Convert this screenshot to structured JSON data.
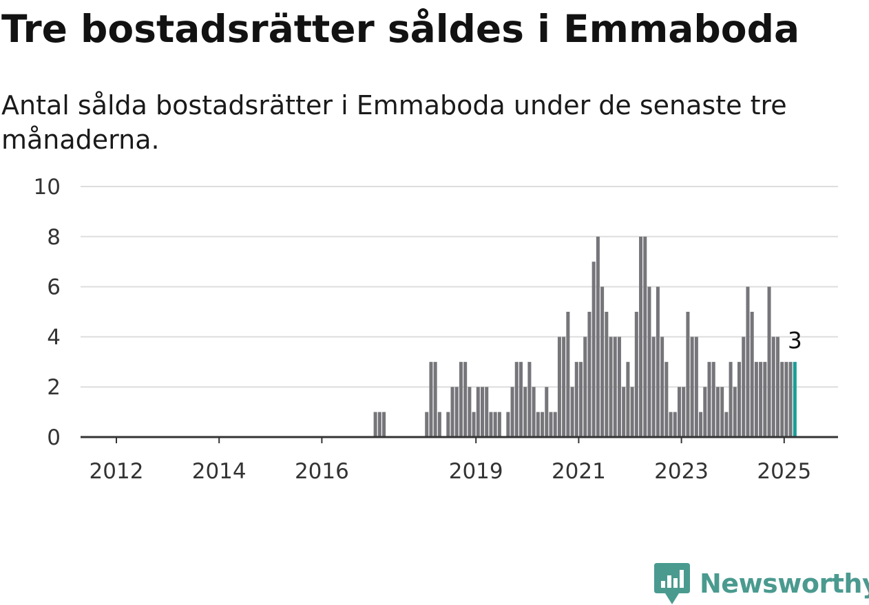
{
  "header": {
    "title": "Tre bostadsrätter såldes i Emmaboda",
    "subtitle": "Antal sålda bostadsrätter i Emmaboda under de senaste tre månaderna."
  },
  "brand": {
    "name": "Newsworthy",
    "color": "#4a9a8f"
  },
  "colors": {
    "bar": "#75757a",
    "highlight": "#1a9e96",
    "grid": "#dddddd",
    "axis": "#333333",
    "tick_text": "#333333"
  },
  "chart_data": {
    "type": "bar",
    "xlabel": "",
    "ylabel": "",
    "ylim": [
      0,
      10
    ],
    "y_ticks": [
      0,
      2,
      4,
      6,
      8,
      10
    ],
    "x_ticks": [
      "2012",
      "2014",
      "2016",
      "2019",
      "2021",
      "2023",
      "2025"
    ],
    "grid": true,
    "highlight_label": "3",
    "categories": [
      "2017-01",
      "2017-02",
      "2017-03",
      "2018-01",
      "2018-02",
      "2018-03",
      "2018-04",
      "2018-05",
      "2018-06",
      "2018-07",
      "2018-08",
      "2018-09",
      "2018-10",
      "2018-11",
      "2018-12",
      "2019-01",
      "2019-02",
      "2019-03",
      "2019-04",
      "2019-05",
      "2019-06",
      "2019-07",
      "2019-08",
      "2019-09",
      "2019-10",
      "2019-11",
      "2019-12",
      "2020-01",
      "2020-02",
      "2020-03",
      "2020-04",
      "2020-05",
      "2020-06",
      "2020-07",
      "2020-08",
      "2020-09",
      "2020-10",
      "2020-11",
      "2020-12",
      "2021-01",
      "2021-02",
      "2021-03",
      "2021-04",
      "2021-05",
      "2021-06",
      "2021-07",
      "2021-08",
      "2021-09",
      "2021-10",
      "2021-11",
      "2021-12",
      "2022-01",
      "2022-02",
      "2022-03",
      "2022-04",
      "2022-05",
      "2022-06",
      "2022-07",
      "2022-08",
      "2022-09",
      "2022-10",
      "2022-11",
      "2022-12",
      "2023-01",
      "2023-02",
      "2023-03",
      "2023-04",
      "2023-05",
      "2023-06",
      "2023-07",
      "2023-08",
      "2023-09",
      "2023-10",
      "2023-11",
      "2023-12",
      "2024-01",
      "2024-02",
      "2024-03",
      "2024-04",
      "2024-05",
      "2024-06",
      "2024-07",
      "2024-08",
      "2024-09",
      "2024-10",
      "2024-11",
      "2024-12",
      "2025-01",
      "2025-02",
      "2025-03"
    ],
    "values": [
      1,
      1,
      1,
      1,
      3,
      3,
      1,
      0,
      1,
      2,
      2,
      3,
      3,
      2,
      1,
      2,
      2,
      2,
      1,
      1,
      1,
      0,
      1,
      2,
      3,
      3,
      2,
      3,
      2,
      1,
      1,
      2,
      1,
      1,
      4,
      4,
      5,
      2,
      3,
      3,
      4,
      5,
      7,
      8,
      6,
      5,
      4,
      4,
      4,
      2,
      3,
      2,
      5,
      8,
      8,
      6,
      4,
      6,
      4,
      3,
      1,
      1,
      2,
      2,
      5,
      4,
      4,
      1,
      2,
      3,
      3,
      2,
      2,
      1,
      3,
      2,
      3,
      4,
      6,
      5,
      3,
      3,
      3,
      6,
      4,
      4,
      3,
      3,
      3,
      3
    ]
  }
}
